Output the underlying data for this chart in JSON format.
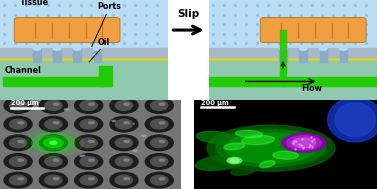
{
  "fig_width": 3.77,
  "fig_height": 1.89,
  "dpi": 100,
  "bg_color": "#ffffff",
  "blue_top": "#b8ddf5",
  "dot_color": "#88bbdd",
  "gray_layer": "#a8b8c8",
  "yellow_line": "#d8d820",
  "teal_bottom": "#90c8b0",
  "tissue_fill": "#f0a040",
  "tissue_edge": "#c07820",
  "port_fill": "#88aacc",
  "channel_green": "#22cc00",
  "slip_label": "Slip",
  "flow_label": "Flow",
  "tissue_label": "Tissue",
  "ports_label": "Ports",
  "channel_label": "Channel",
  "oil_label": "Oil",
  "scale_label": "200 μm"
}
